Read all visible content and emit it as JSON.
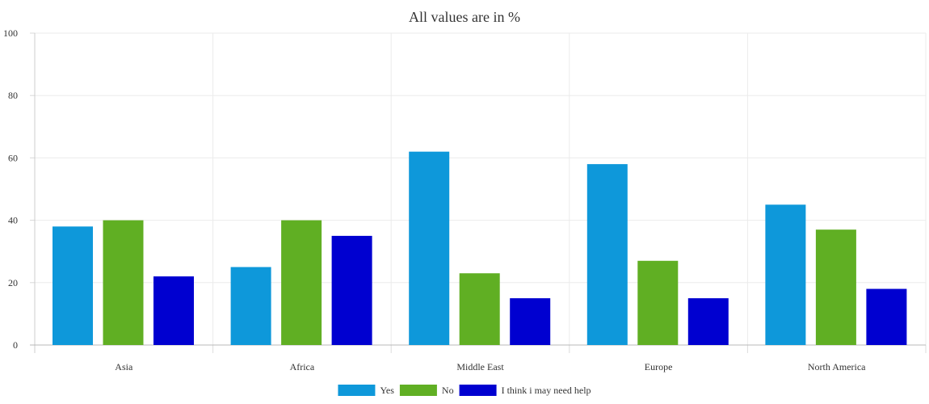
{
  "chart_data": {
    "type": "bar",
    "title": "All values are in %",
    "xlabel": "",
    "ylabel": "",
    "categories": [
      "Asia",
      "Africa",
      "Middle East",
      "Europe",
      "North America"
    ],
    "series": [
      {
        "name": "Yes",
        "color": "#0e98da",
        "values": [
          38,
          25,
          62,
          58,
          45
        ]
      },
      {
        "name": "No",
        "color": "#60af23",
        "values": [
          40,
          40,
          23,
          27,
          37
        ]
      },
      {
        "name": "I think i may need help",
        "color": "#0000d0",
        "values": [
          22,
          35,
          15,
          15,
          18
        ]
      }
    ],
    "ylim": [
      0,
      100
    ],
    "yticks": [
      "0",
      "20",
      "40",
      "60",
      "80",
      "100"
    ],
    "grid": true,
    "legend_position": "bottom-center"
  }
}
